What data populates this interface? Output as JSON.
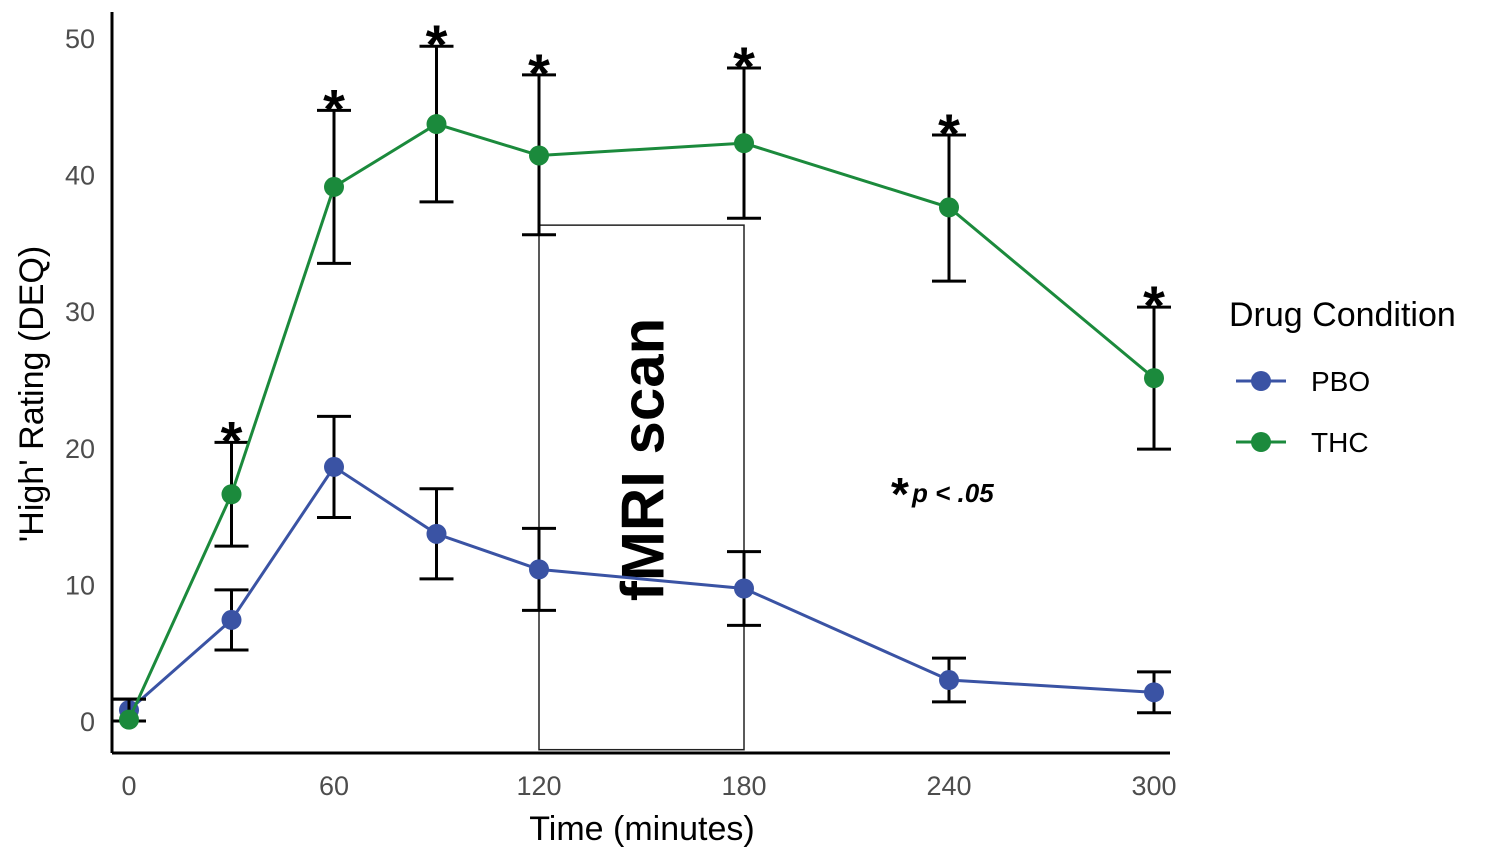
{
  "chart_data": {
    "type": "line",
    "xlabel": "Time (minutes)",
    "ylabel": "'High' Rating (DEQ)",
    "x_ticks": [
      0,
      60,
      120,
      180,
      240,
      300
    ],
    "y_ticks": [
      0,
      10,
      20,
      30,
      40,
      50
    ],
    "xlim": [
      0,
      300
    ],
    "ylim": [
      0,
      50
    ],
    "x": [
      0,
      30,
      60,
      90,
      120,
      180,
      240,
      300
    ],
    "series": [
      {
        "name": "PBO",
        "color": "#3a53a4",
        "values": [
          0.8,
          7.4,
          18.6,
          13.7,
          11.1,
          9.7,
          3.0,
          2.1
        ],
        "error_low": [
          0.0,
          5.2,
          14.9,
          10.4,
          8.1,
          7.0,
          1.4,
          0.6
        ],
        "error_high": [
          1.6,
          9.6,
          22.3,
          17.0,
          14.1,
          12.4,
          4.6,
          3.6
        ]
      },
      {
        "name": "THC",
        "color": "#1b8a3c",
        "values": [
          0.1,
          16.6,
          39.1,
          43.7,
          41.4,
          42.3,
          37.6,
          25.1
        ],
        "error_low": [
          0.0,
          12.8,
          33.5,
          38.0,
          35.6,
          36.8,
          32.2,
          19.9
        ],
        "error_high": [
          1.6,
          20.4,
          44.7,
          49.4,
          47.3,
          47.8,
          42.9,
          30.3
        ]
      }
    ],
    "significance_marker": "*",
    "significant_x": [
      30,
      60,
      90,
      120,
      180,
      240,
      300
    ],
    "annotation": {
      "label": "fMRI scan",
      "x_range": [
        120,
        180
      ],
      "y_range": [
        -2.1,
        36.3
      ]
    },
    "note": {
      "symbol": "*",
      "text": "p < .05"
    },
    "legend": {
      "title": "Drug Condition",
      "placement": "right",
      "entries": [
        "PBO",
        "THC"
      ]
    },
    "grid": false
  }
}
